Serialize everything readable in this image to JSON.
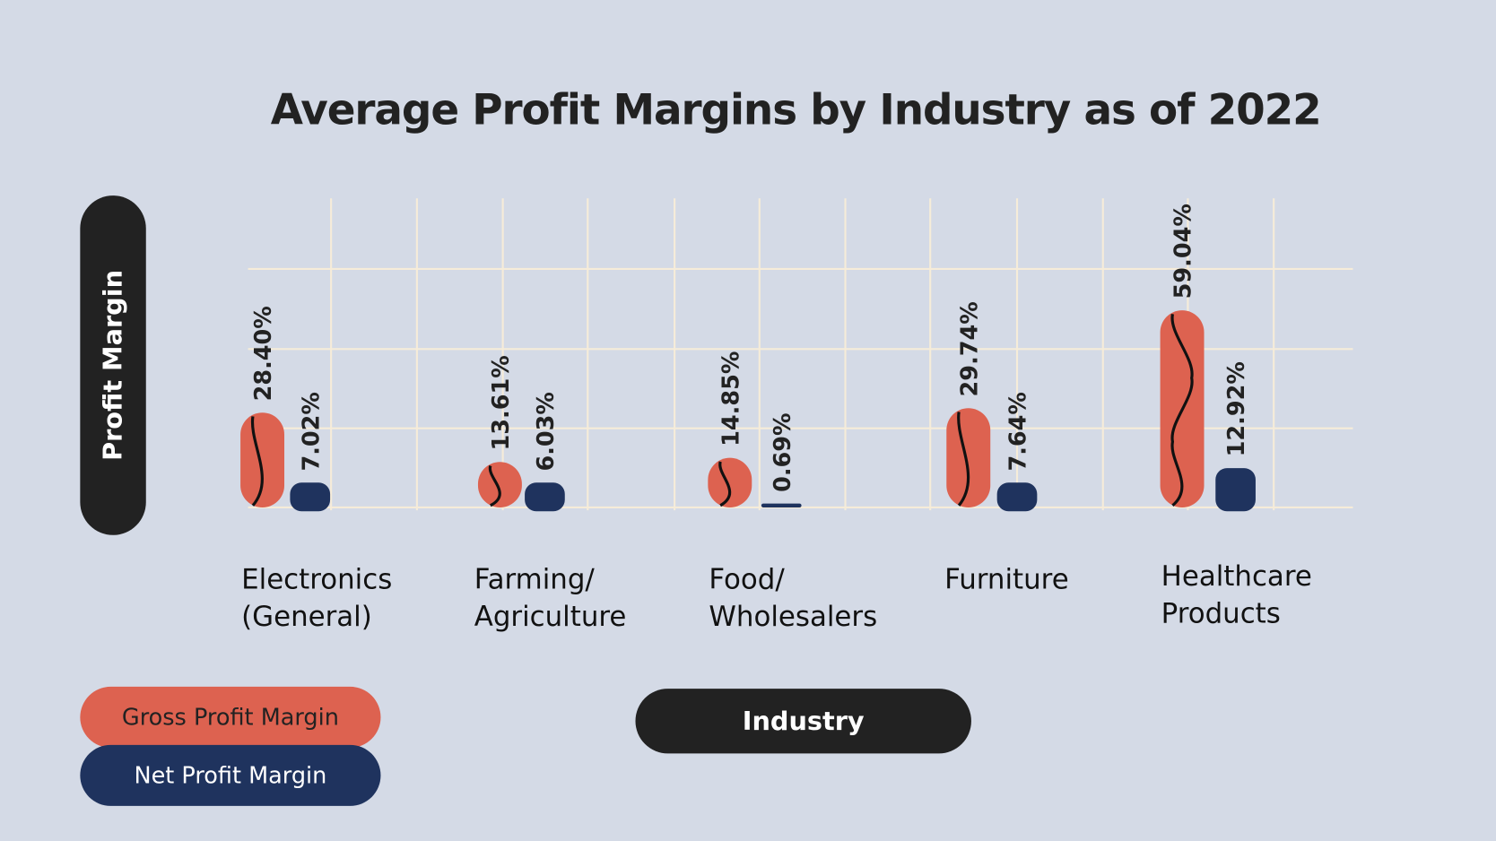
{
  "chart_data": {
    "type": "bar",
    "title": "Average Profit Margins by Industry as of 2022",
    "xlabel": "Industry",
    "ylabel": "Profit Margin",
    "categories": [
      "Electronics\n(General)",
      "Farming/\nAgriculture",
      "Food/\nWholesalers",
      "Furniture",
      "Healthcare\nProducts"
    ],
    "series": [
      {
        "name": "Gross Profit Margin",
        "color": "#dd6250",
        "values": [
          28.4,
          13.61,
          14.85,
          29.74,
          59.04
        ],
        "labels": [
          "28.40%",
          "13.61%",
          "14.85%",
          "29.74%",
          "59.04%"
        ]
      },
      {
        "name": "Net Profit Margin",
        "color": "#1f335e",
        "values": [
          7.02,
          6.03,
          0.69,
          7.64,
          12.92
        ],
        "labels": [
          "7.02%",
          "6.03%",
          "0.69%",
          "7.64%",
          "12.92%"
        ]
      }
    ],
    "grid": true,
    "legend": "bottom-left",
    "colors": {
      "background": "#d4dae6",
      "grid": "#f6ecd9",
      "pill": "#222222"
    }
  }
}
